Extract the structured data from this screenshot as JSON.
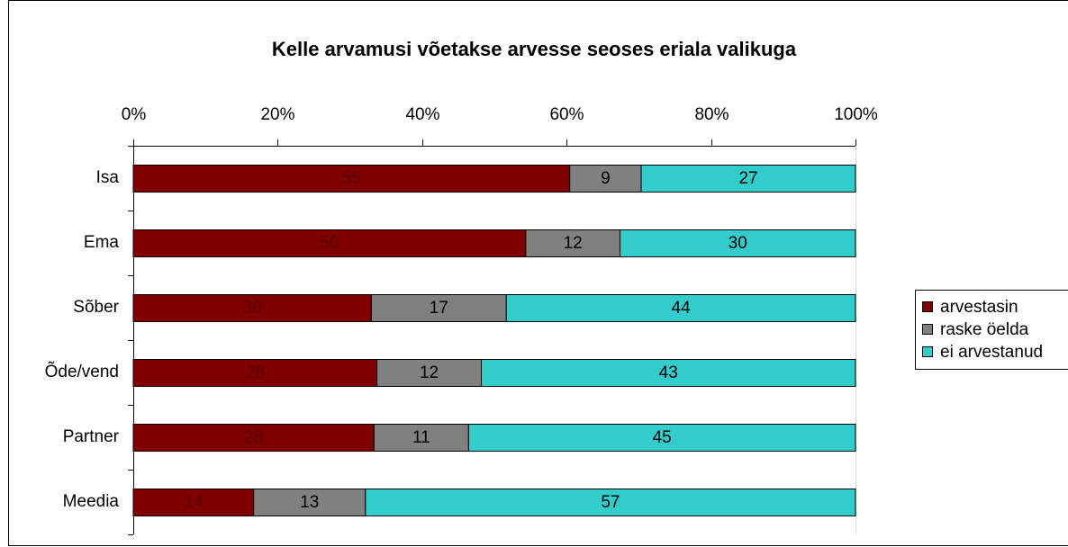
{
  "chart_data": {
    "type": "bar",
    "orientation": "horizontal",
    "stacking": "percent",
    "title": "Kelle arvamusi võetakse arvesse seoses eriala valikuga",
    "categories": [
      "Isa",
      "Ema",
      "Sõber",
      "Õde/vend",
      "Partner",
      "Meedia"
    ],
    "series": [
      {
        "name": "arvestasin",
        "color": "#800000",
        "label_color": "#5a0000",
        "values": [
          55,
          50,
          30,
          28,
          28,
          14
        ]
      },
      {
        "name": "raske öelda",
        "color": "#808080",
        "label_color": "#000000",
        "values": [
          9,
          12,
          17,
          12,
          11,
          13
        ]
      },
      {
        "name": "ei arvestanud",
        "color": "#33cccc",
        "label_color": "#000000",
        "values": [
          27,
          30,
          44,
          43,
          45,
          57
        ]
      }
    ],
    "xlim": [
      0,
      100
    ],
    "xticks": [
      {
        "value": 0,
        "label": "0%"
      },
      {
        "value": 20,
        "label": "20%"
      },
      {
        "value": 40,
        "label": "40%"
      },
      {
        "value": 60,
        "label": "60%"
      },
      {
        "value": 80,
        "label": "80%"
      },
      {
        "value": 100,
        "label": "100%"
      }
    ],
    "legend": "right"
  }
}
